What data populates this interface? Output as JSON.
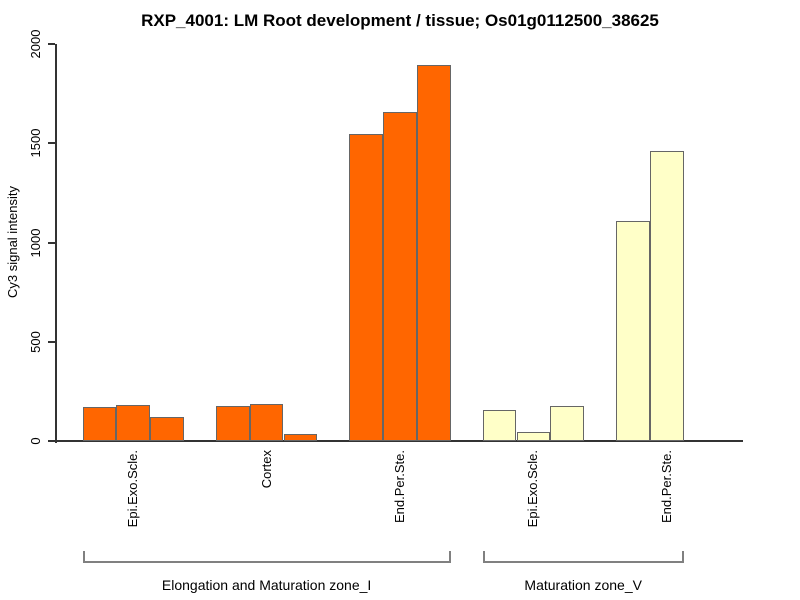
{
  "chart_data": {
    "type": "bar",
    "title": "RXP_4001: LM Root development / tissue; Os01g0112500_38625",
    "ylabel": "Cy3 signal intensity",
    "xlabel": "",
    "ylim": [
      0,
      2000
    ],
    "yticks": [
      0,
      500,
      1000,
      1500,
      2000
    ],
    "grid": false,
    "legend_position": "none",
    "bar_fill_orange": "#FF6600",
    "bar_fill_yellow": "#FFFFC8",
    "bar_border_color": "#666666",
    "axis_color": "#333333",
    "bracket_color": "#808080",
    "groups": [
      {
        "label": "Epi.Exo.Scle.",
        "color": "#FF6600",
        "values": [
          173,
          180,
          123
        ]
      },
      {
        "label": "Cortex",
        "color": "#FF6600",
        "values": [
          176,
          188,
          35
        ]
      },
      {
        "label": "End.Per.Ste.",
        "color": "#FF6600",
        "values": [
          1548,
          1658,
          1893
        ]
      },
      {
        "label": "Epi.Exo.Scle.",
        "color": "#FFFFC8",
        "values": [
          158,
          46,
          176
        ]
      },
      {
        "label": "End.Per.Ste.",
        "color": "#FFFFC8",
        "values": [
          1107,
          1462,
          null
        ]
      }
    ],
    "zones": [
      {
        "label": "Elongation and Maturation zone_I",
        "group_start": 0,
        "group_end": 2
      },
      {
        "label": "Maturation zone_V",
        "group_start": 3,
        "group_end": 4
      }
    ]
  }
}
